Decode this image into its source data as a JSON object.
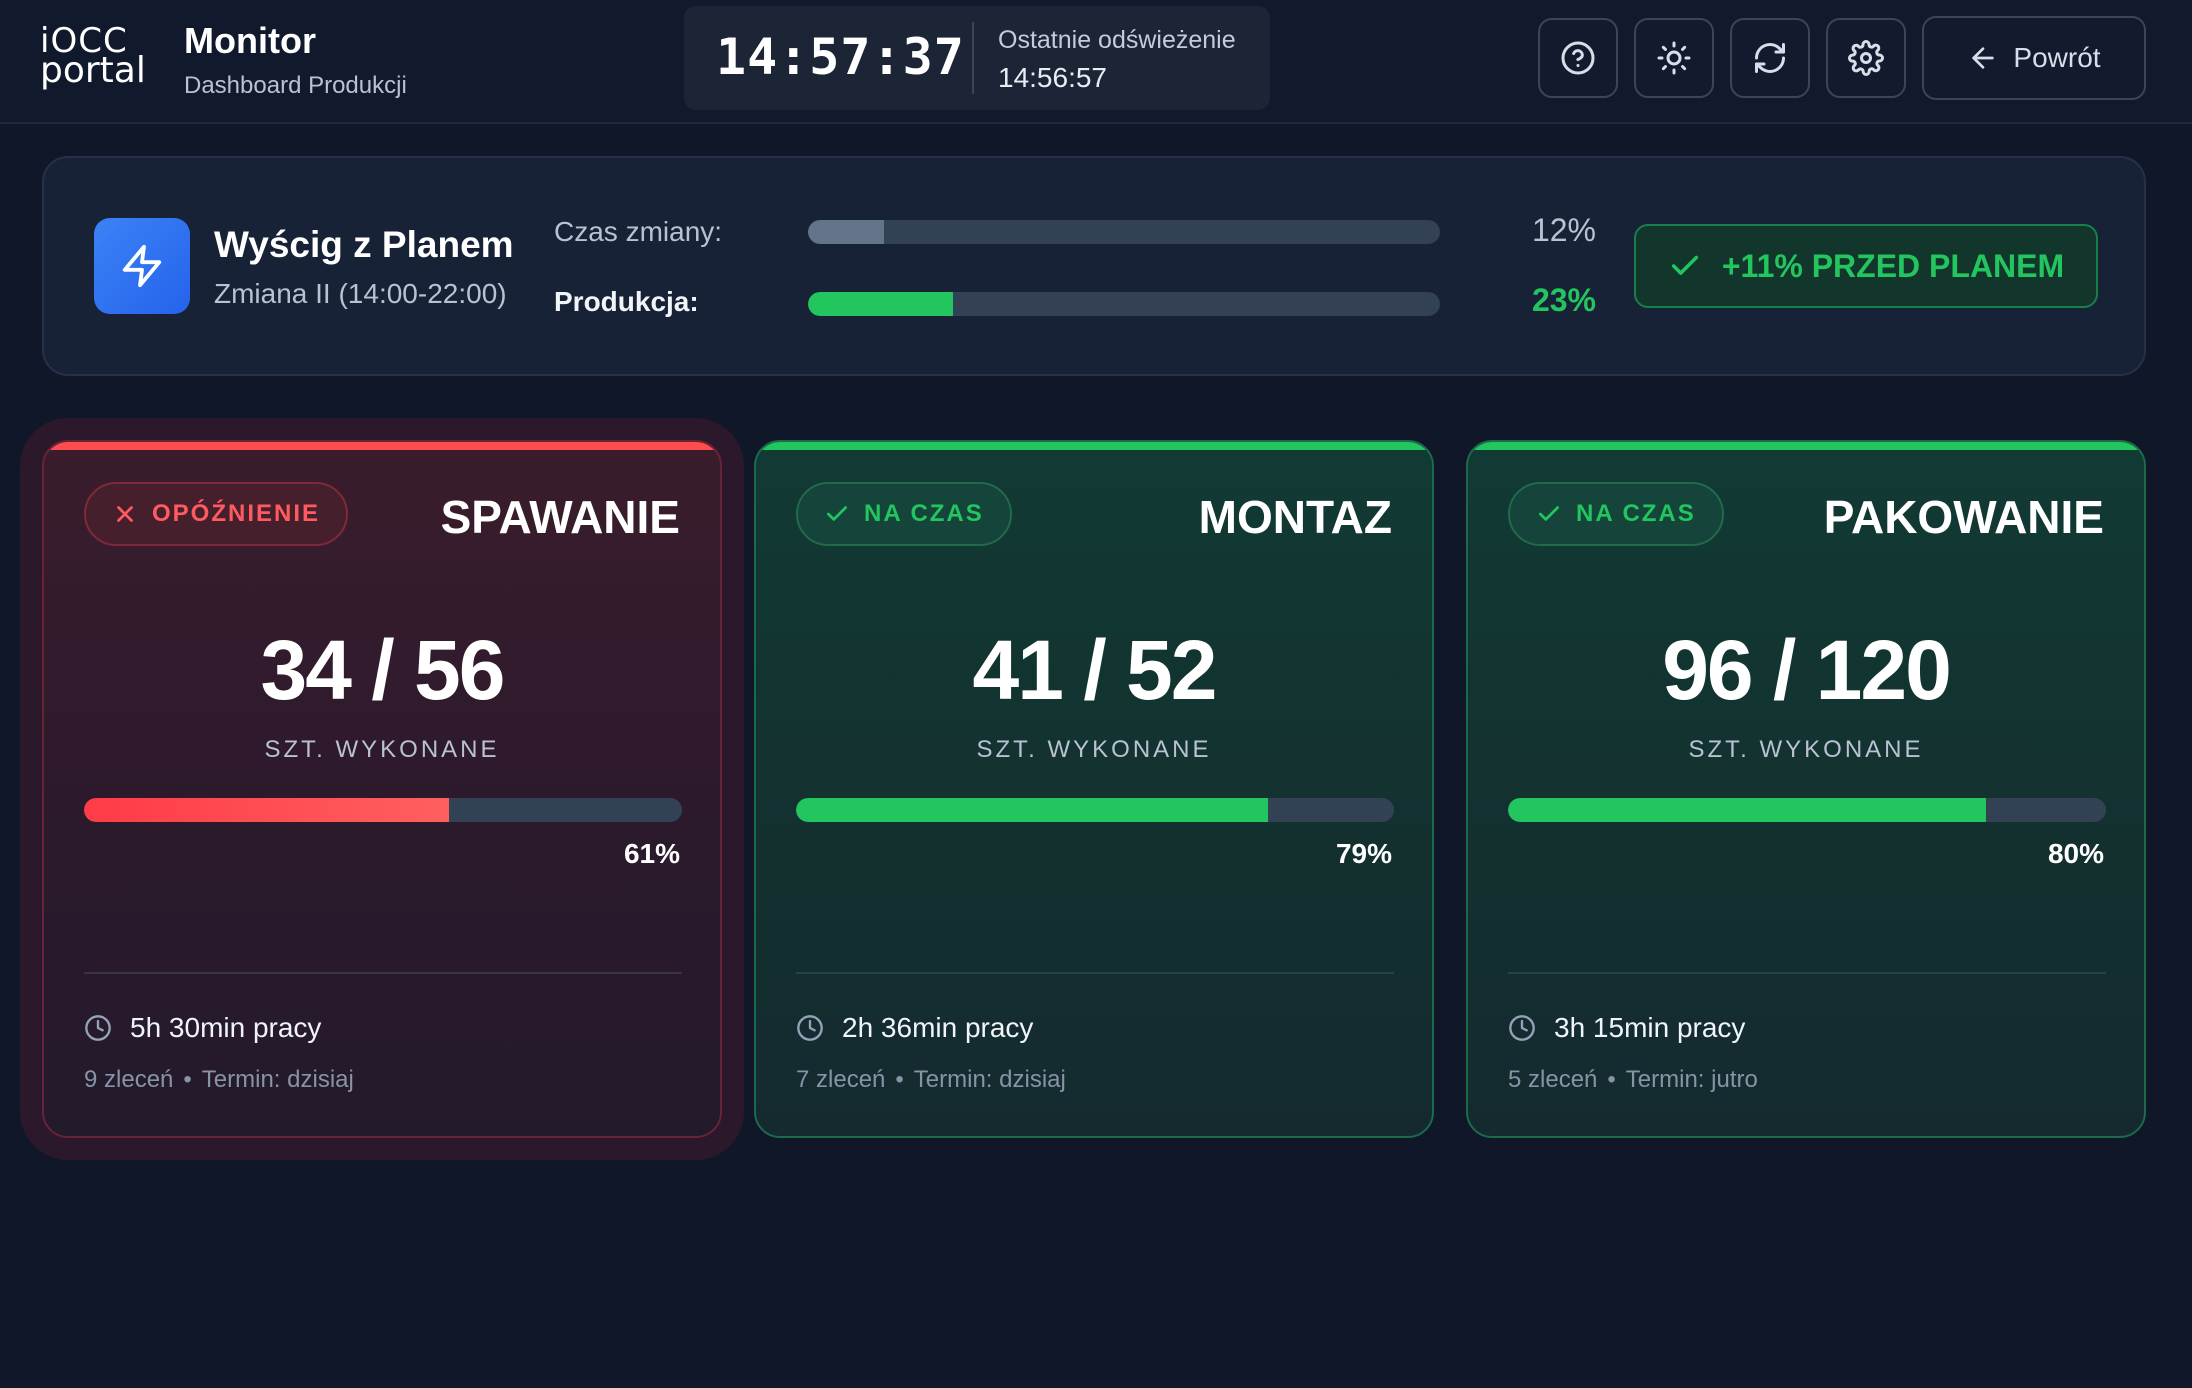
{
  "header": {
    "logo_line1": "iOCC",
    "logo_line2": "portal",
    "title": "Monitor",
    "subtitle": "Dashboard Produkcji",
    "clock": "14:57:37",
    "refresh_label": "Ostatnie odświeżenie",
    "refresh_time": "14:56:57",
    "icons": [
      "help-icon",
      "sun-icon",
      "refresh-icon",
      "gear-icon"
    ],
    "back_label": "Powrót"
  },
  "race": {
    "title": "Wyścig z Planem",
    "subtitle": "Zmiana II (14:00-22:00)",
    "shift_label": "Czas zmiany:",
    "shift_pct_value": 0.12,
    "shift_pct_text": "12%",
    "production_label": "Produkcja:",
    "production_pct_value": 0.23,
    "production_pct_text": "23%",
    "ahead_text": "+11% PRZED PLANEM"
  },
  "stations": [
    {
      "status": "OPÓŹNIENIE",
      "status_type": "delay",
      "name": "SPAWANIE",
      "count": "34 / 56",
      "count_label": "SZT. WYKONANE",
      "progress": 0.61,
      "progress_text": "61%",
      "work_time": "5h 30min pracy",
      "orders": "9 zleceń",
      "deadline": "Termin: dzisiaj"
    },
    {
      "status": "NA CZAS",
      "status_type": "ok",
      "name": "MONTAZ",
      "count": "41 / 52",
      "count_label": "SZT. WYKONANE",
      "progress": 0.79,
      "progress_text": "79%",
      "work_time": "2h 36min pracy",
      "orders": "7 zleceń",
      "deadline": "Termin: dzisiaj"
    },
    {
      "status": "NA CZAS",
      "status_type": "ok",
      "name": "PAKOWANIE",
      "count": "96 / 120",
      "count_label": "SZT. WYKONANE",
      "progress": 0.8,
      "progress_text": "80%",
      "work_time": "3h 15min pracy",
      "orders": "5 zleceń",
      "deadline": "Termin: jutro"
    }
  ],
  "colors": {
    "background": "#0f1729",
    "accent_blue": "#3b82f6",
    "ok_green": "#22c55e",
    "delay_red": "#ff4d4f",
    "muted_fill": "#64748b"
  }
}
